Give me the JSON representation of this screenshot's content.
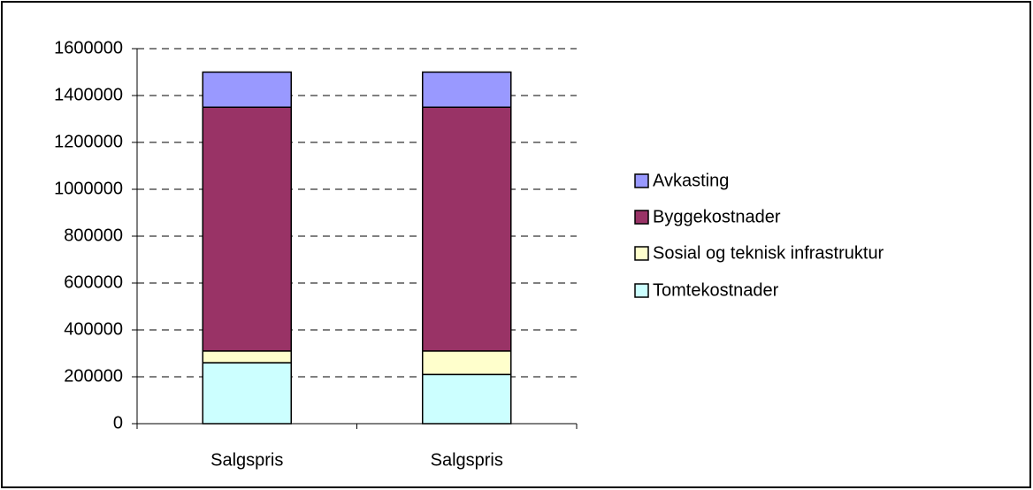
{
  "chart_data": {
    "type": "stacked-bar",
    "categories": [
      "Salgspris",
      "Salgspris"
    ],
    "series": [
      {
        "name": "Tomtekostnader",
        "color": "#ccffff",
        "values": [
          260000,
          210000
        ]
      },
      {
        "name": "Sosial og teknisk infrastruktur",
        "color": "#ffffcc",
        "values": [
          50000,
          100000
        ]
      },
      {
        "name": "Byggekostnader",
        "color": "#993366",
        "values": [
          1040000,
          1040000
        ]
      },
      {
        "name": "Avkasting",
        "color": "#9999ff",
        "values": [
          150000,
          150000
        ]
      }
    ],
    "ylim": [
      0,
      1600000
    ],
    "yticks": [
      0,
      200000,
      400000,
      600000,
      800000,
      1000000,
      1200000,
      1400000,
      1600000
    ],
    "grid": true,
    "legend": "right"
  }
}
